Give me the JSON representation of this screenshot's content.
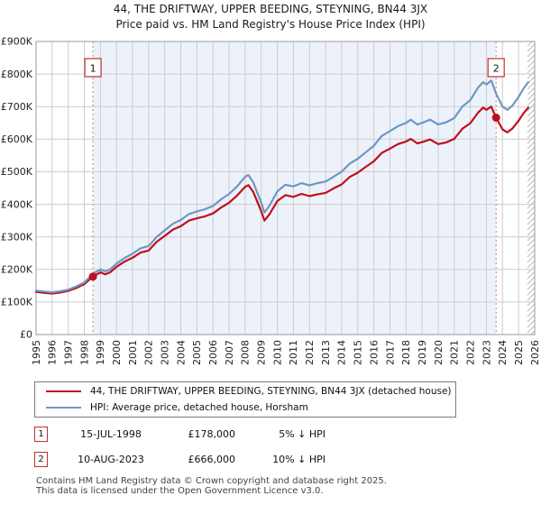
{
  "title": {
    "line1": "44, THE DRIFTWAY, UPPER BEEDING, STEYNING, BN44 3JX",
    "line2": "Price paid vs. HM Land Registry's House Price Index (HPI)"
  },
  "legend": {
    "series1_label": "44, THE DRIFTWAY, UPPER BEEDING, STEYNING, BN44 3JX (detached house)",
    "series2_label": "HPI: Average price, detached house, Horsham"
  },
  "annotations": [
    {
      "marker": "1",
      "date": "15-JUL-1998",
      "price": "£178,000",
      "hpi_diff": "5% ↓ HPI"
    },
    {
      "marker": "2",
      "date": "10-AUG-2023",
      "price": "£666,000",
      "hpi_diff": "10% ↓ HPI"
    }
  ],
  "footer": {
    "line1": "Contains HM Land Registry data © Crown copyright and database right 2025.",
    "line2": "This data is licensed under the Open Government Licence v3.0."
  },
  "colors": {
    "property_line": "#c00e1e",
    "hpi_line": "#6d97c4",
    "shade": "#edf2fa",
    "grid": "#cccccc",
    "plot_border": "#999999",
    "dashed_marker": "#e57373",
    "marker_box_border": "#c03030",
    "hatch": "#bbbbbb",
    "text": "#222222"
  },
  "chart_data": {
    "type": "line",
    "title": "44, THE DRIFTWAY, UPPER BEEDING, STEYNING, BN44 3JX",
    "subtitle": "Price paid vs. HM Land Registry's House Price Index (HPI)",
    "xlim": [
      1995,
      2026
    ],
    "ylim": [
      0,
      900000
    ],
    "grid": true,
    "legend_position": "bottom",
    "x_ticks": [
      1995,
      1996,
      1997,
      1998,
      1999,
      2000,
      2001,
      2002,
      2003,
      2004,
      2005,
      2006,
      2007,
      2008,
      2009,
      2010,
      2011,
      2012,
      2013,
      2014,
      2015,
      2016,
      2017,
      2018,
      2019,
      2020,
      2021,
      2022,
      2023,
      2024,
      2025,
      2026
    ],
    "y_tick_values": [
      0,
      100000,
      200000,
      300000,
      400000,
      500000,
      600000,
      700000,
      800000,
      900000
    ],
    "y_tick_labels": [
      "£0",
      "£100K",
      "£200K",
      "£300K",
      "£400K",
      "£500K",
      "£600K",
      "£700K",
      "£800K",
      "£900K"
    ],
    "shaded_region_years": [
      1998.54,
      2023.6
    ],
    "hatch_region_years": [
      2025.55,
      2026
    ],
    "x": [
      1995.0,
      1995.5,
      1996.0,
      1996.5,
      1997.0,
      1997.5,
      1998.0,
      1998.54,
      1999.0,
      1999.3,
      1999.6,
      2000.0,
      2000.5,
      2001.0,
      2001.5,
      2002.0,
      2002.5,
      2003.0,
      2003.5,
      2004.0,
      2004.5,
      2005.0,
      2005.5,
      2006.0,
      2006.5,
      2007.0,
      2007.5,
      2008.0,
      2008.2,
      2008.5,
      2009.0,
      2009.2,
      2009.5,
      2010.0,
      2010.5,
      2011.0,
      2011.5,
      2012.0,
      2012.5,
      2013.0,
      2013.5,
      2014.0,
      2014.5,
      2015.0,
      2015.5,
      2016.0,
      2016.5,
      2017.0,
      2017.5,
      2018.0,
      2018.3,
      2018.7,
      2019.0,
      2019.5,
      2020.0,
      2020.5,
      2021.0,
      2021.5,
      2022.0,
      2022.5,
      2022.8,
      2023.0,
      2023.3,
      2023.6,
      2024.0,
      2024.3,
      2024.6,
      2025.0,
      2025.3,
      2025.6
    ],
    "series": [
      {
        "name": "44, THE DRIFTWAY, UPPER BEEDING, STEYNING, BN44 3JX (detached house)",
        "color": "#c00e1e",
        "values": [
          131000,
          128000,
          126000,
          129000,
          134000,
          143000,
          155000,
          178000,
          191000,
          185000,
          191000,
          208000,
          224000,
          236000,
          252000,
          258000,
          285000,
          303000,
          322000,
          333000,
          350000,
          357000,
          363000,
          372000,
          390000,
          405000,
          427000,
          454000,
          459000,
          438000,
          379000,
          350000,
          369000,
          410000,
          428000,
          423000,
          432000,
          425000,
          431000,
          435000,
          449000,
          461000,
          484000,
          497000,
          515000,
          532000,
          558000,
          571000,
          585000,
          593000,
          601000,
          587000,
          591000,
          599000,
          585000,
          590000,
          601000,
          632000,
          649000,
          683000,
          697000,
          690000,
          700000,
          666000,
          630000,
          621000,
          632000,
          657000,
          679000,
          697000
        ]
      },
      {
        "name": "HPI: Average price, detached house, Horsham",
        "color": "#6d97c4",
        "values": [
          135000,
          132000,
          130000,
          133000,
          138000,
          148000,
          160000,
          187000,
          200000,
          194000,
          200000,
          218000,
          235000,
          248000,
          265000,
          272000,
          300000,
          320000,
          340000,
          352000,
          370000,
          378000,
          385000,
          395000,
          415000,
          432000,
          455000,
          485000,
          490000,
          468000,
          405000,
          375000,
          395000,
          440000,
          460000,
          455000,
          465000,
          458000,
          465000,
          470000,
          485000,
          500000,
          525000,
          540000,
          560000,
          580000,
          610000,
          625000,
          640000,
          650000,
          660000,
          645000,
          650000,
          660000,
          645000,
          652000,
          665000,
          700000,
          720000,
          760000,
          775000,
          768000,
          780000,
          740000,
          700000,
          690000,
          702000,
          730000,
          755000,
          775000
        ]
      }
    ],
    "sales": [
      {
        "label": "1",
        "x_year": 1998.54,
        "price": 178000
      },
      {
        "label": "2",
        "x_year": 2023.6,
        "price": 666000
      }
    ]
  }
}
